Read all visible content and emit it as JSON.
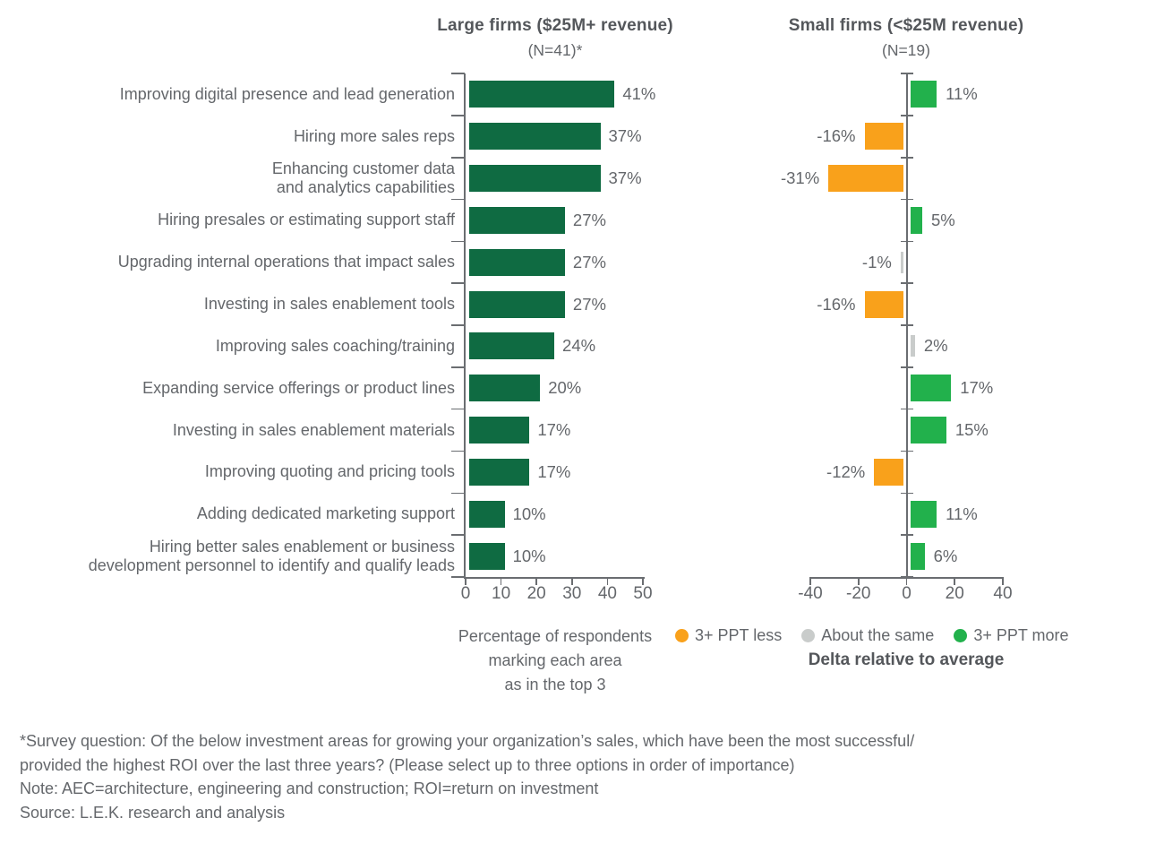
{
  "colors": {
    "dark_green": "#0F6B42",
    "green": "#22B14C",
    "orange": "#F9A11B",
    "gray": "#C9CCCB",
    "axis": "#6A6D71"
  },
  "chart_data": {
    "type": "bar",
    "orientation": "horizontal",
    "panels": [
      {
        "title": "Large firms ($25M+ revenue)",
        "subtitle": "(N=41)*",
        "xlabel": "Percentage of respondents\nmarking each area\nas in the top 3",
        "xlim": [
          0,
          50
        ],
        "ticks": [
          0,
          10,
          20,
          30,
          40,
          50
        ]
      },
      {
        "title": "Small firms (<$25M revenue)",
        "subtitle": "(N=19)",
        "xlabel": "Delta relative to average",
        "xlim": [
          -40,
          40
        ],
        "ticks": [
          -40,
          -20,
          0,
          20,
          40
        ]
      }
    ],
    "categories": [
      "Improving digital presence and lead generation",
      "Hiring more sales reps",
      "Enhancing customer data\nand analytics capabilities",
      "Hiring presales or estimating support staff",
      "Upgrading internal operations that impact sales",
      "Investing in sales enablement tools",
      "Improving sales coaching/training",
      "Expanding service offerings or product lines",
      "Investing in sales enablement materials",
      "Improving quoting and pricing tools",
      "Adding dedicated marketing support",
      "Hiring better sales enablement or business\ndevelopment personnel to identify and qualify leads"
    ],
    "series": [
      {
        "name": "Large firms percentage in top 3",
        "values": [
          41,
          37,
          37,
          27,
          27,
          27,
          24,
          20,
          17,
          17,
          10,
          10
        ]
      },
      {
        "name": "Small firms delta relative to average (PPT)",
        "values": [
          11,
          -16,
          -31,
          5,
          -1,
          -16,
          2,
          17,
          15,
          -12,
          11,
          6
        ]
      }
    ],
    "small_firm_category": [
      "more",
      "less",
      "less",
      "more",
      "same",
      "less",
      "same",
      "more",
      "more",
      "less",
      "more",
      "more"
    ],
    "legend": [
      {
        "label": "3+ PPT less",
        "color": "#F9A11B"
      },
      {
        "label": "About the same",
        "color": "#C9CCCB"
      },
      {
        "label": "3+ PPT more",
        "color": "#22B14C"
      }
    ],
    "legend_position": "bottom-right",
    "grid": false
  },
  "footnotes": {
    "survey": "*Survey question: Of the below investment areas for growing your organization’s sales, which have been the most successful/\nprovided the highest ROI over the last three years? (Please select up to three options in order of importance)",
    "note": "Note: AEC=architecture, engineering and construction; ROI=return on investment",
    "source": "Source: L.E.K. research and analysis"
  }
}
